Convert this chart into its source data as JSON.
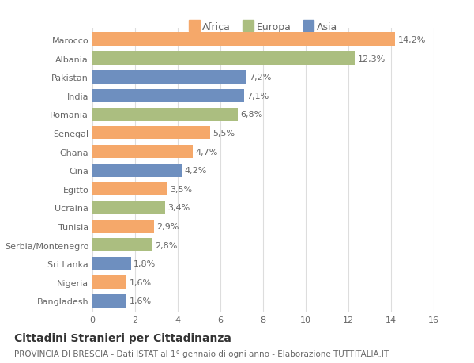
{
  "categories": [
    "Marocco",
    "Albania",
    "Pakistan",
    "India",
    "Romania",
    "Senegal",
    "Ghana",
    "Cina",
    "Egitto",
    "Ucraina",
    "Tunisia",
    "Serbia/Montenegro",
    "Sri Lanka",
    "Nigeria",
    "Bangladesh"
  ],
  "values": [
    14.2,
    12.3,
    7.2,
    7.1,
    6.8,
    5.5,
    4.7,
    4.2,
    3.5,
    3.4,
    2.9,
    2.8,
    1.8,
    1.6,
    1.6
  ],
  "labels": [
    "14,2%",
    "12,3%",
    "7,2%",
    "7,1%",
    "6,8%",
    "5,5%",
    "4,7%",
    "4,2%",
    "3,5%",
    "3,4%",
    "2,9%",
    "2,8%",
    "1,8%",
    "1,6%",
    "1,6%"
  ],
  "continents": [
    "Africa",
    "Europa",
    "Asia",
    "Asia",
    "Europa",
    "Africa",
    "Africa",
    "Asia",
    "Africa",
    "Europa",
    "Africa",
    "Europa",
    "Asia",
    "Africa",
    "Asia"
  ],
  "colors": {
    "Africa": "#F5A86A",
    "Europa": "#ABBE80",
    "Asia": "#6E8FBF"
  },
  "xlim": [
    0,
    16
  ],
  "xticks": [
    0,
    2,
    4,
    6,
    8,
    10,
    12,
    14,
    16
  ],
  "title": "Cittadini Stranieri per Cittadinanza",
  "subtitle": "PROVINCIA DI BRESCIA - Dati ISTAT al 1° gennaio di ogni anno - Elaborazione TUTTITALIA.IT",
  "background_color": "#ffffff",
  "grid_color": "#dddddd",
  "bar_height": 0.72,
  "title_fontsize": 10,
  "subtitle_fontsize": 7.5,
  "label_fontsize": 8,
  "tick_fontsize": 8,
  "legend_fontsize": 9
}
